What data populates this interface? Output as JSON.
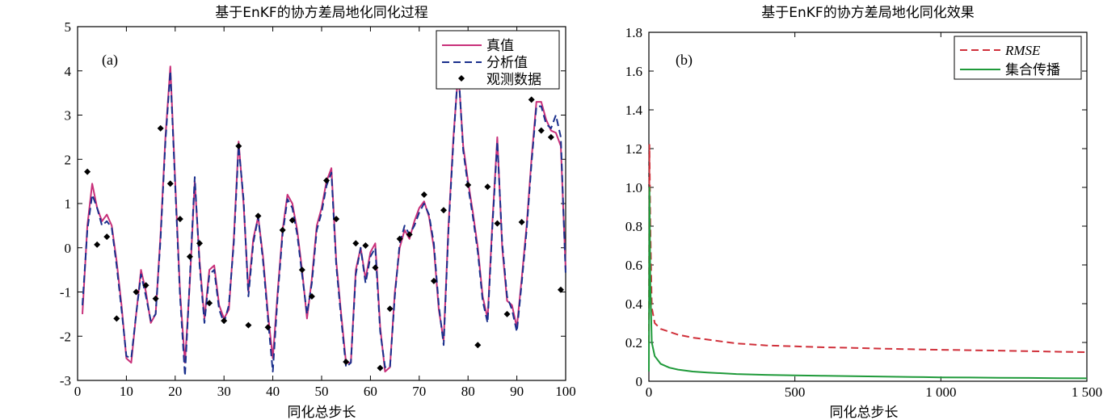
{
  "chart_data": [
    {
      "type": "line",
      "panel_label": "(a)",
      "title": "基于EnKF的协方差局地化同化过程",
      "xlabel": "同化总步长",
      "ylabel": "",
      "xlim": [
        0,
        100
      ],
      "ylim": [
        -3,
        5
      ],
      "xticks": [
        0,
        10,
        20,
        30,
        40,
        50,
        60,
        70,
        80,
        90,
        100
      ],
      "yticks": [
        -3,
        -2,
        -1,
        0,
        1,
        2,
        3,
        4,
        5
      ],
      "legend_position": "top-right",
      "colors": {
        "true": "#c8307a",
        "analysis": "#1a2f8c",
        "obs": "#000000"
      },
      "series": [
        {
          "name": "真值",
          "style": "solid",
          "x": [
            1,
            2,
            3,
            4,
            5,
            6,
            7,
            8,
            9,
            10,
            11,
            12,
            13,
            14,
            15,
            16,
            17,
            18,
            19,
            20,
            21,
            22,
            23,
            24,
            25,
            26,
            27,
            28,
            29,
            30,
            31,
            32,
            33,
            34,
            35,
            36,
            37,
            38,
            39,
            40,
            41,
            42,
            43,
            44,
            45,
            46,
            47,
            48,
            49,
            50,
            51,
            52,
            53,
            54,
            55,
            56,
            57,
            58,
            59,
            60,
            61,
            62,
            63,
            64,
            65,
            66,
            67,
            68,
            69,
            70,
            71,
            72,
            73,
            74,
            75,
            76,
            77,
            78,
            79,
            80,
            81,
            82,
            83,
            84,
            85,
            86,
            87,
            88,
            89,
            90,
            91,
            92,
            93,
            94,
            95,
            96,
            97,
            98,
            99,
            100
          ],
          "y": [
            -1.5,
            0.5,
            1.45,
            0.9,
            0.6,
            0.75,
            0.5,
            -0.3,
            -1.3,
            -2.5,
            -2.6,
            -1.5,
            -0.5,
            -1.0,
            -1.7,
            -1.5,
            0.3,
            2.5,
            4.1,
            1.5,
            -1.0,
            -2.6,
            -0.8,
            1.5,
            -0.3,
            -1.6,
            -0.5,
            -0.4,
            -1.3,
            -1.6,
            -1.4,
            0.2,
            2.4,
            1.0,
            -1.0,
            0.2,
            0.7,
            -0.2,
            -1.5,
            -2.5,
            -1.0,
            0.4,
            1.2,
            1.0,
            0.4,
            -0.5,
            -1.6,
            -0.7,
            0.5,
            0.9,
            1.5,
            1.8,
            -0.3,
            -1.5,
            -2.6,
            -2.6,
            -0.5,
            0.0,
            -0.7,
            -0.1,
            0.1,
            -1.8,
            -2.8,
            -2.7,
            -1.0,
            0.0,
            0.4,
            0.2,
            0.6,
            0.9,
            1.05,
            0.7,
            0.0,
            -1.4,
            -2.1,
            0.5,
            2.5,
            4.0,
            2.3,
            1.5,
            0.8,
            0.0,
            -1.1,
            -1.6,
            0.6,
            2.5,
            0.0,
            -1.2,
            -1.3,
            -1.8,
            -0.7,
            0.5,
            2.0,
            3.3,
            3.3,
            2.9,
            2.65,
            2.6,
            2.3,
            -0.5
          ]
        },
        {
          "name": "分析值",
          "style": "dashed",
          "x": [
            1,
            2,
            3,
            4,
            5,
            6,
            7,
            8,
            9,
            10,
            11,
            12,
            13,
            14,
            15,
            16,
            17,
            18,
            19,
            20,
            21,
            22,
            23,
            24,
            25,
            26,
            27,
            28,
            29,
            30,
            31,
            32,
            33,
            34,
            35,
            36,
            37,
            38,
            39,
            40,
            41,
            42,
            43,
            44,
            45,
            46,
            47,
            48,
            49,
            50,
            51,
            52,
            53,
            54,
            55,
            56,
            57,
            58,
            59,
            60,
            61,
            62,
            63,
            64,
            65,
            66,
            67,
            68,
            69,
            70,
            71,
            72,
            73,
            74,
            75,
            76,
            77,
            78,
            79,
            80,
            81,
            82,
            83,
            84,
            85,
            86,
            87,
            88,
            89,
            90,
            91,
            92,
            93,
            94,
            95,
            96,
            97,
            98,
            99,
            100
          ],
          "y": [
            -1.3,
            0.4,
            1.2,
            0.9,
            0.5,
            0.6,
            0.45,
            -0.4,
            -1.4,
            -2.45,
            -2.5,
            -1.5,
            -0.6,
            -1.1,
            -1.65,
            -1.5,
            0.2,
            2.4,
            4.0,
            1.4,
            -1.1,
            -2.9,
            -0.7,
            1.6,
            -0.4,
            -1.7,
            -0.6,
            -0.5,
            -1.4,
            -1.7,
            -1.3,
            0.1,
            2.3,
            1.1,
            -1.1,
            0.1,
            0.7,
            -0.3,
            -1.6,
            -2.8,
            -1.1,
            0.3,
            1.1,
            0.9,
            0.3,
            -0.6,
            -1.5,
            -0.8,
            0.4,
            0.8,
            1.4,
            1.7,
            -0.4,
            -1.6,
            -2.7,
            -2.6,
            -0.6,
            0.0,
            -0.8,
            -0.2,
            0.0,
            -1.9,
            -2.7,
            -2.7,
            -1.1,
            0.1,
            0.5,
            0.3,
            0.5,
            0.8,
            1.0,
            0.75,
            0.1,
            -1.3,
            -2.2,
            0.4,
            2.4,
            4.1,
            2.2,
            1.4,
            0.7,
            -0.1,
            -1.2,
            -1.7,
            0.5,
            2.4,
            0.1,
            -1.1,
            -1.4,
            -1.9,
            -0.8,
            0.4,
            1.9,
            3.2,
            3.2,
            2.8,
            2.7,
            3.0,
            2.5,
            -0.6
          ]
        },
        {
          "name": "观测数据",
          "style": "markers",
          "x": [
            2,
            4,
            6,
            8,
            12,
            14,
            16,
            17,
            19,
            21,
            23,
            25,
            27,
            30,
            33,
            35,
            37,
            39,
            42,
            44,
            46,
            48,
            51,
            53,
            55,
            57,
            59,
            61,
            62,
            64,
            66,
            68,
            71,
            73,
            75,
            80,
            82,
            84,
            86,
            88,
            91,
            93,
            95,
            97,
            99
          ],
          "y": [
            1.72,
            0.07,
            0.25,
            -1.6,
            -1.0,
            -0.85,
            -1.15,
            2.7,
            1.45,
            0.65,
            -0.2,
            0.1,
            -1.25,
            -1.65,
            2.3,
            -1.75,
            0.72,
            -1.8,
            0.4,
            0.62,
            -0.5,
            -1.1,
            1.52,
            0.65,
            -2.58,
            0.1,
            0.05,
            -0.45,
            -2.72,
            -1.38,
            0.2,
            0.3,
            1.2,
            -0.75,
            0.85,
            1.42,
            -2.2,
            1.38,
            0.55,
            -1.5,
            0.58,
            3.35,
            2.65,
            2.5,
            -0.95
          ]
        }
      ]
    },
    {
      "type": "line",
      "panel_label": "(b)",
      "title": "基于EnKF的协方差局地化同化效果",
      "xlabel": "同化总步长",
      "ylabel": "",
      "xlim": [
        0,
        1500
      ],
      "ylim": [
        0,
        1.8
      ],
      "xticks": [
        0,
        500,
        1000,
        1500
      ],
      "xtick_labels": [
        "0",
        "500",
        "1 000",
        "1 500"
      ],
      "yticks": [
        0,
        0.2,
        0.4,
        0.6,
        0.8,
        1.0,
        1.2,
        1.4,
        1.6,
        1.8
      ],
      "ytick_labels": [
        "0",
        "0.2",
        "0.4",
        "0.6",
        "0.8",
        "1.0",
        "1.2",
        "1.4",
        "1.6",
        "1.8"
      ],
      "legend_position": "top-right",
      "colors": {
        "rmse": "#d0303a",
        "spread": "#1f9a3a"
      },
      "series": [
        {
          "name": "RMSE",
          "style": "dashed",
          "x": [
            0,
            2,
            5,
            10,
            20,
            40,
            70,
            100,
            150,
            200,
            300,
            400,
            500,
            600,
            700,
            800,
            900,
            1000,
            1100,
            1200,
            1300,
            1400,
            1500
          ],
          "y": [
            0.2,
            1.22,
            0.8,
            0.38,
            0.3,
            0.27,
            0.255,
            0.24,
            0.225,
            0.215,
            0.195,
            0.185,
            0.18,
            0.175,
            0.172,
            0.168,
            0.165,
            0.162,
            0.16,
            0.158,
            0.155,
            0.152,
            0.15
          ]
        },
        {
          "name": "集合传播",
          "style": "solid",
          "x": [
            0,
            2,
            5,
            10,
            20,
            40,
            70,
            100,
            150,
            200,
            300,
            400,
            500,
            600,
            700,
            800,
            900,
            1000,
            1100,
            1200,
            1300,
            1400,
            1500
          ],
          "y": [
            0.05,
            1.0,
            0.5,
            0.2,
            0.13,
            0.09,
            0.07,
            0.06,
            0.05,
            0.045,
            0.037,
            0.033,
            0.03,
            0.028,
            0.026,
            0.024,
            0.022,
            0.02,
            0.019,
            0.018,
            0.017,
            0.016,
            0.015
          ]
        }
      ]
    }
  ]
}
